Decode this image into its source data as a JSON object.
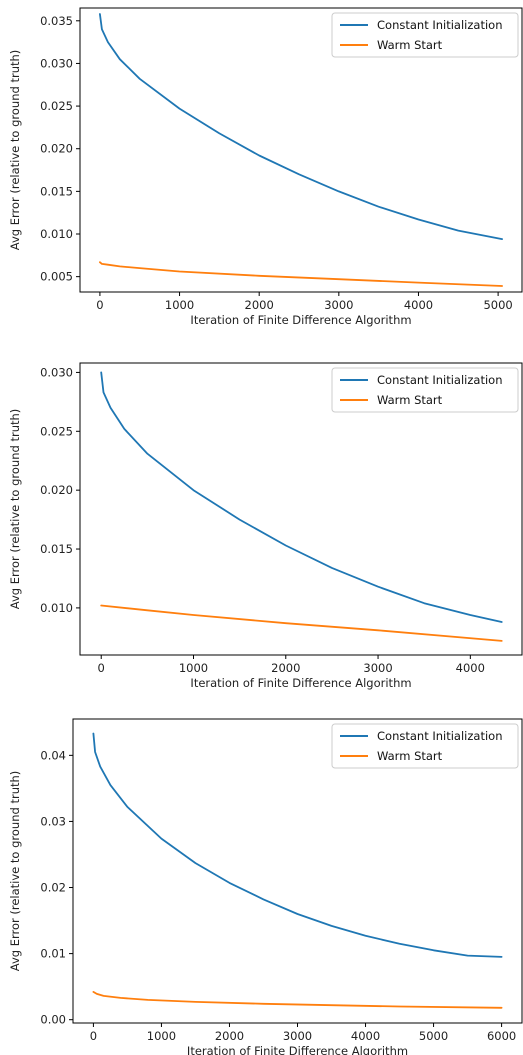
{
  "colors": {
    "series_1": "#1f77b4",
    "series_2": "#ff7f0e"
  },
  "chart_data": [
    {
      "type": "line",
      "xlabel": "Iteration of Finite Difference Algorithm",
      "ylabel": "Avg Error (relative to ground truth)",
      "xlim": [
        -250,
        5300
      ],
      "ylim": [
        0.0032,
        0.0365
      ],
      "xticks": [
        0,
        1000,
        2000,
        3000,
        4000,
        5000
      ],
      "yticks": [
        0.005,
        0.01,
        0.015,
        0.02,
        0.025,
        0.03,
        0.035
      ],
      "ytick_labels": [
        "0.005",
        "0.010",
        "0.015",
        "0.020",
        "0.025",
        "0.030",
        "0.035"
      ],
      "legend": "top-right",
      "series": [
        {
          "name": "Constant Initialization",
          "x": [
            0,
            25,
            100,
            250,
            500,
            1000,
            1500,
            2000,
            2500,
            3000,
            3500,
            4000,
            4500,
            5050
          ],
          "y": [
            0.0358,
            0.034,
            0.0325,
            0.0305,
            0.0282,
            0.0247,
            0.0218,
            0.0192,
            0.017,
            0.015,
            0.0132,
            0.0117,
            0.0104,
            0.0094
          ]
        },
        {
          "name": "Warm Start",
          "x": [
            0,
            25,
            100,
            250,
            500,
            1000,
            2000,
            3000,
            4000,
            5050
          ],
          "y": [
            0.0067,
            0.0065,
            0.0064,
            0.0062,
            0.006,
            0.0056,
            0.0051,
            0.0047,
            0.0043,
            0.0039
          ]
        }
      ]
    },
    {
      "type": "line",
      "xlabel": "Iteration of Finite Difference Algorithm",
      "ylabel": "Avg Error (relative to ground truth)",
      "xlim": [
        -230,
        4560
      ],
      "ylim": [
        0.006,
        0.0308
      ],
      "xticks": [
        0,
        1000,
        2000,
        3000,
        4000
      ],
      "yticks": [
        0.01,
        0.015,
        0.02,
        0.025,
        0.03
      ],
      "ytick_labels": [
        "0.010",
        "0.015",
        "0.020",
        "0.025",
        "0.030"
      ],
      "legend": "top-right",
      "series": [
        {
          "name": "Constant Initialization",
          "x": [
            0,
            25,
            100,
            250,
            500,
            1000,
            1500,
            2000,
            2500,
            3000,
            3500,
            4000,
            4340
          ],
          "y": [
            0.03,
            0.0283,
            0.027,
            0.0252,
            0.0231,
            0.02,
            0.0175,
            0.0153,
            0.0134,
            0.0118,
            0.0104,
            0.0094,
            0.0088
          ]
        },
        {
          "name": "Warm Start",
          "x": [
            0,
            500,
            1000,
            2000,
            3000,
            4340
          ],
          "y": [
            0.0102,
            0.0098,
            0.0094,
            0.0087,
            0.0081,
            0.0072
          ]
        }
      ]
    },
    {
      "type": "line",
      "xlabel": "Iteration of Finite Difference Algorithm",
      "ylabel": "Avg Error (relative to ground truth)",
      "xlim": [
        -300,
        6300
      ],
      "ylim": [
        -0.0005,
        0.0455
      ],
      "xticks": [
        0,
        1000,
        2000,
        3000,
        4000,
        5000,
        6000
      ],
      "yticks": [
        0.0,
        0.01,
        0.02,
        0.03,
        0.04
      ],
      "ytick_labels": [
        "0.00",
        "0.01",
        "0.02",
        "0.03",
        "0.04"
      ],
      "legend": "top-right",
      "series": [
        {
          "name": "Constant Initialization",
          "x": [
            0,
            25,
            100,
            250,
            500,
            1000,
            1500,
            2000,
            2500,
            3000,
            3500,
            4000,
            4500,
            5000,
            5500,
            6000
          ],
          "y": [
            0.0433,
            0.0405,
            0.0383,
            0.0355,
            0.0322,
            0.0274,
            0.0237,
            0.0207,
            0.0182,
            0.016,
            0.0142,
            0.0127,
            0.0115,
            0.0105,
            0.0097,
            0.0095
          ]
        },
        {
          "name": "Warm Start",
          "x": [
            0,
            50,
            150,
            400,
            800,
            1500,
            2500,
            3500,
            4500,
            6000
          ],
          "y": [
            0.0042,
            0.0039,
            0.0036,
            0.0033,
            0.003,
            0.0027,
            0.0024,
            0.0022,
            0.002,
            0.0018
          ]
        }
      ]
    }
  ]
}
